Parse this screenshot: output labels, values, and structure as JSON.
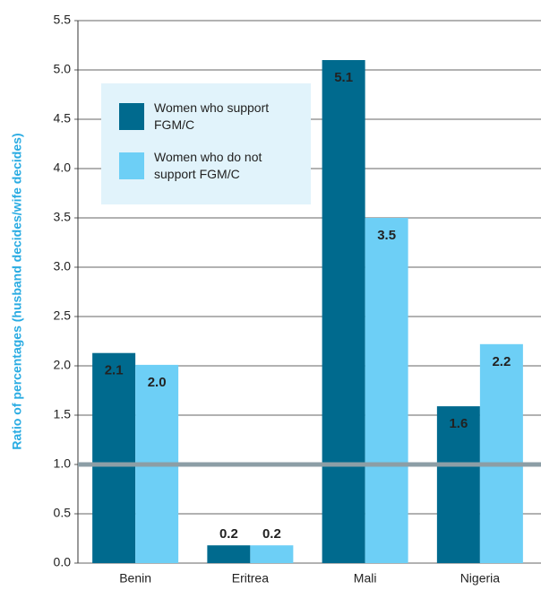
{
  "chart_data": {
    "type": "bar",
    "y_label": "Ratio of percentages (husband decides/wife decides)",
    "categories": [
      "Benin",
      "Eritrea",
      "Mali",
      "Nigeria"
    ],
    "series": [
      {
        "name": "Women who support FGM/C",
        "color": "#006a8e",
        "values": [
          2.13,
          0.18,
          5.1,
          1.59
        ],
        "value_labels": [
          "2.1",
          "0.2",
          "5.1",
          "1.6"
        ]
      },
      {
        "name": "Women who do not support FGM/C",
        "color": "#6dcff6",
        "values": [
          2.01,
          0.18,
          3.5,
          2.22
        ],
        "value_labels": [
          "2.0",
          "0.2",
          "3.5",
          "2.2"
        ]
      }
    ],
    "ylim": [
      0,
      5.5
    ],
    "yticks": [
      {
        "value": 0,
        "label": "0.0"
      },
      0.5,
      {
        "value": 1,
        "label": "1.0"
      },
      1.5,
      {
        "value": 2,
        "label": "2.0"
      },
      2.5,
      {
        "value": 3,
        "label": "3.0"
      },
      3.5,
      {
        "value": 4,
        "label": "4.0"
      },
      4.5,
      {
        "value": 5,
        "label": "5.0"
      },
      5.5
    ],
    "grid": true,
    "reference_line": 1,
    "legend_position": "upper left"
  }
}
